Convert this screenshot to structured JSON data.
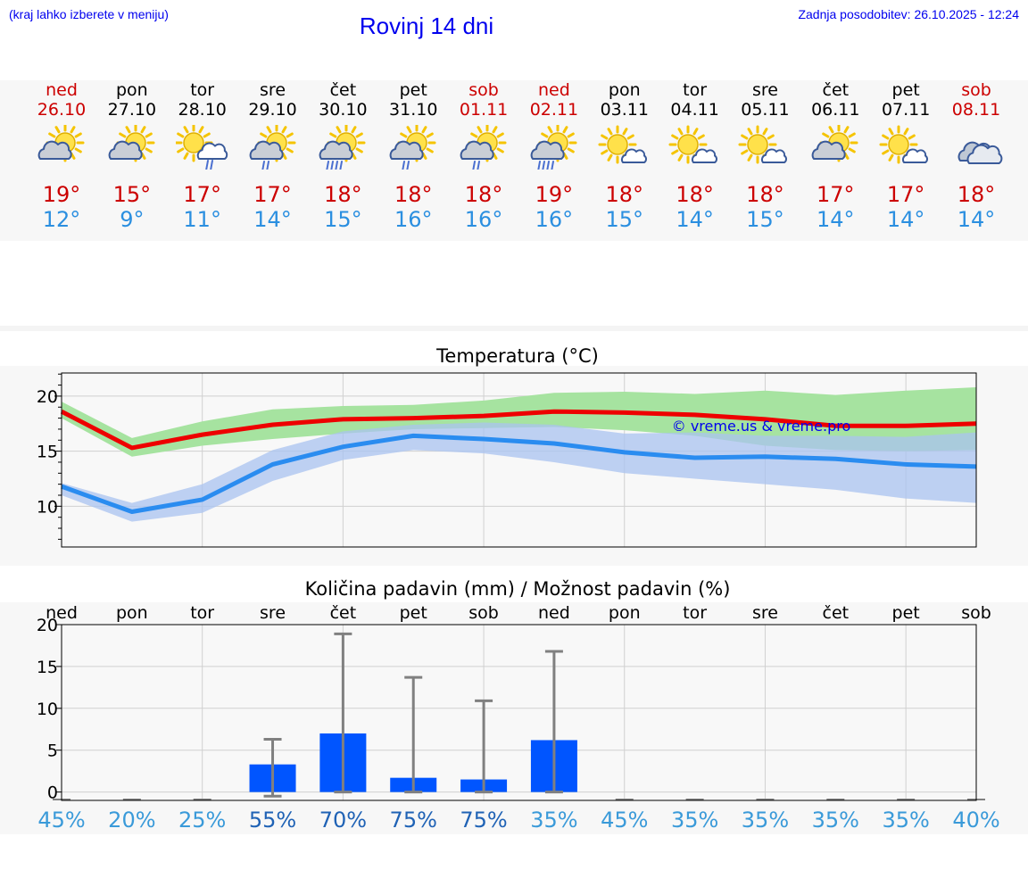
{
  "header": {
    "menu_hint": "(kraj lahko izberete v meniju)",
    "title": "Rovinj 14 dni",
    "last_update": "Zadnja posodobitev: 26.10.2025 - 12:24"
  },
  "colors": {
    "link": "#0000ee",
    "max_temp": "#cc0000",
    "min_temp": "#2b8fe0",
    "max_line": "#ee0000",
    "min_line": "#2a8cf0",
    "max_band": "#a6e3a0",
    "min_band": "#a9c3f0",
    "precip_bar": "#0055ff",
    "errorbar": "#808080"
  },
  "days": [
    {
      "name": "ned",
      "date": "26.10",
      "weekend": true,
      "icon": "partly-cloudy-icon",
      "hi": "19°",
      "lo": "12°"
    },
    {
      "name": "pon",
      "date": "27.10",
      "weekend": false,
      "icon": "partly-cloudy-icon",
      "hi": "15°",
      "lo": "9°"
    },
    {
      "name": "tor",
      "date": "28.10",
      "weekend": false,
      "icon": "sun-cloud-rain-icon",
      "hi": "17°",
      "lo": "11°"
    },
    {
      "name": "sre",
      "date": "29.10",
      "weekend": false,
      "icon": "partly-cloudy-rain-icon",
      "hi": "17°",
      "lo": "14°"
    },
    {
      "name": "čet",
      "date": "30.10",
      "weekend": false,
      "icon": "partly-cloudy-heavy-rain-icon",
      "hi": "18°",
      "lo": "15°"
    },
    {
      "name": "pet",
      "date": "31.10",
      "weekend": false,
      "icon": "partly-cloudy-rain-icon",
      "hi": "18°",
      "lo": "16°"
    },
    {
      "name": "sob",
      "date": "01.11",
      "weekend": true,
      "icon": "partly-cloudy-rain-icon",
      "hi": "18°",
      "lo": "16°"
    },
    {
      "name": "ned",
      "date": "02.11",
      "weekend": true,
      "icon": "partly-cloudy-heavy-rain-icon",
      "hi": "19°",
      "lo": "16°"
    },
    {
      "name": "pon",
      "date": "03.11",
      "weekend": false,
      "icon": "sun-small-cloud-icon",
      "hi": "18°",
      "lo": "15°"
    },
    {
      "name": "tor",
      "date": "04.11",
      "weekend": false,
      "icon": "sun-small-cloud-icon",
      "hi": "18°",
      "lo": "14°"
    },
    {
      "name": "sre",
      "date": "05.11",
      "weekend": false,
      "icon": "sun-small-cloud-icon",
      "hi": "18°",
      "lo": "15°"
    },
    {
      "name": "čet",
      "date": "06.11",
      "weekend": false,
      "icon": "partly-cloudy-icon",
      "hi": "17°",
      "lo": "14°"
    },
    {
      "name": "pet",
      "date": "07.11",
      "weekend": false,
      "icon": "sun-small-cloud-icon",
      "hi": "17°",
      "lo": "14°"
    },
    {
      "name": "sob",
      "date": "08.11",
      "weekend": true,
      "icon": "cloudy-icon",
      "hi": "18°",
      "lo": "14°"
    }
  ],
  "chart_data": [
    {
      "type": "line",
      "title": "Temperatura (°C)",
      "ylim": [
        6.3,
        22.1
      ],
      "yticks": [
        10,
        15,
        20
      ],
      "grid": true,
      "annotation": "© vreme.us & vreme.pro",
      "series": [
        {
          "values": [
            18.6,
            15.3,
            16.5,
            17.4,
            17.9,
            18.0,
            18.2,
            18.6,
            18.5,
            18.3,
            17.9,
            17.3,
            17.3,
            17.5
          ],
          "upper": [
            19.5,
            16.2,
            17.7,
            18.8,
            19.1,
            19.2,
            19.6,
            20.3,
            20.4,
            20.2,
            20.5,
            20.1,
            20.5,
            20.8
          ],
          "lower": [
            18.0,
            14.5,
            15.5,
            16.1,
            16.6,
            17.0,
            17.1,
            17.2,
            16.9,
            16.4,
            15.5,
            15.1,
            15.0,
            15.1
          ]
        },
        {
          "values": [
            11.8,
            9.5,
            10.6,
            13.8,
            15.4,
            16.4,
            16.1,
            15.7,
            14.9,
            14.4,
            14.5,
            14.3,
            13.8,
            13.6
          ],
          "upper": [
            12.1,
            10.3,
            12.0,
            15.1,
            16.8,
            17.4,
            17.6,
            17.4,
            16.6,
            16.7,
            16.4,
            16.4,
            16.3,
            16.7
          ],
          "lower": [
            11.0,
            8.6,
            9.4,
            12.3,
            14.2,
            15.1,
            14.8,
            14.0,
            13.0,
            12.5,
            12.0,
            11.5,
            10.7,
            10.3
          ]
        }
      ]
    },
    {
      "type": "bar",
      "title": "Količina padavin (mm) / Možnost padavin (%)",
      "categories": [
        "ned",
        "pon",
        "tor",
        "sre",
        "čet",
        "pet",
        "sob",
        "ned",
        "pon",
        "tor",
        "sre",
        "čet",
        "pet",
        "sob"
      ],
      "ylim": [
        -1,
        20
      ],
      "yticks": [
        0,
        5,
        10,
        15,
        20
      ],
      "grid": true,
      "values": [
        0,
        0,
        0,
        3.3,
        7.0,
        1.7,
        1.5,
        6.2,
        0,
        0,
        0,
        0,
        0,
        0
      ],
      "error_high": [
        0,
        0,
        0,
        6.3,
        18.9,
        13.7,
        10.9,
        16.8,
        0,
        0,
        0,
        0,
        0,
        0
      ],
      "error_low": [
        0,
        0,
        0,
        -0.5,
        0,
        0,
        0,
        0,
        0,
        0,
        0,
        0,
        0,
        0
      ],
      "chance": [
        "45%",
        "20%",
        "25%",
        "55%",
        "70%",
        "75%",
        "75%",
        "35%",
        "45%",
        "35%",
        "35%",
        "35%",
        "35%",
        "40%"
      ]
    }
  ]
}
